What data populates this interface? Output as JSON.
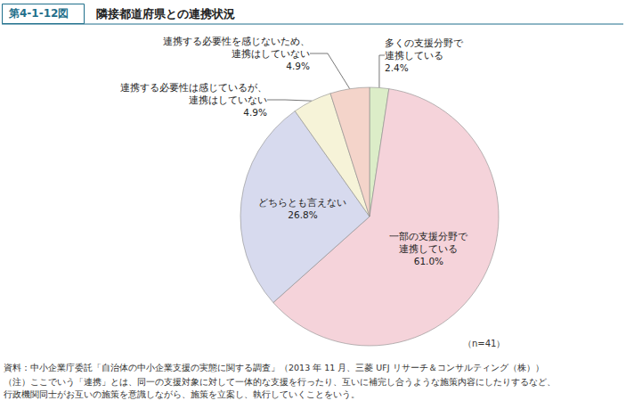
{
  "chart_data": {
    "type": "pie",
    "figure_number": "第4-1-12図",
    "title": "隣接都道府県との連携状況",
    "categories": [
      "多くの支援分野で\n連携している",
      "一部の支援分野で\n連携している",
      "どちらとも言えない",
      "連携する必要性は感じているが、\n連携はしていない",
      "連携する必要性を感じないため、\n連携はしていない"
    ],
    "values": [
      2.4,
      61.0,
      26.8,
      4.9,
      4.9
    ],
    "value_labels": [
      "2.4%",
      "61.0%",
      "26.8%",
      "4.9%",
      "4.9%"
    ],
    "colors": [
      "#dcedc8",
      "#f5d3da",
      "#d7daee",
      "#f6f3d8",
      "#f4d4ca"
    ],
    "data_labels": true,
    "annotations": [
      "（n=41）"
    ],
    "source": "資料：中小企業庁委託「自治体の中小企業支援の実態に関する調査」（2013 年 11 月、三菱 UFJ リサーチ＆コンサルティング（株））",
    "note": "（注）ここでいう「連携」とは、同一の支援対象に対して一体的な支援を行ったり、互いに補完し合うような施策内容にしたりするなど、\n行政機関同士がお互いの施策を意識しながら、施策を立案し、執行していくことをいう。"
  }
}
